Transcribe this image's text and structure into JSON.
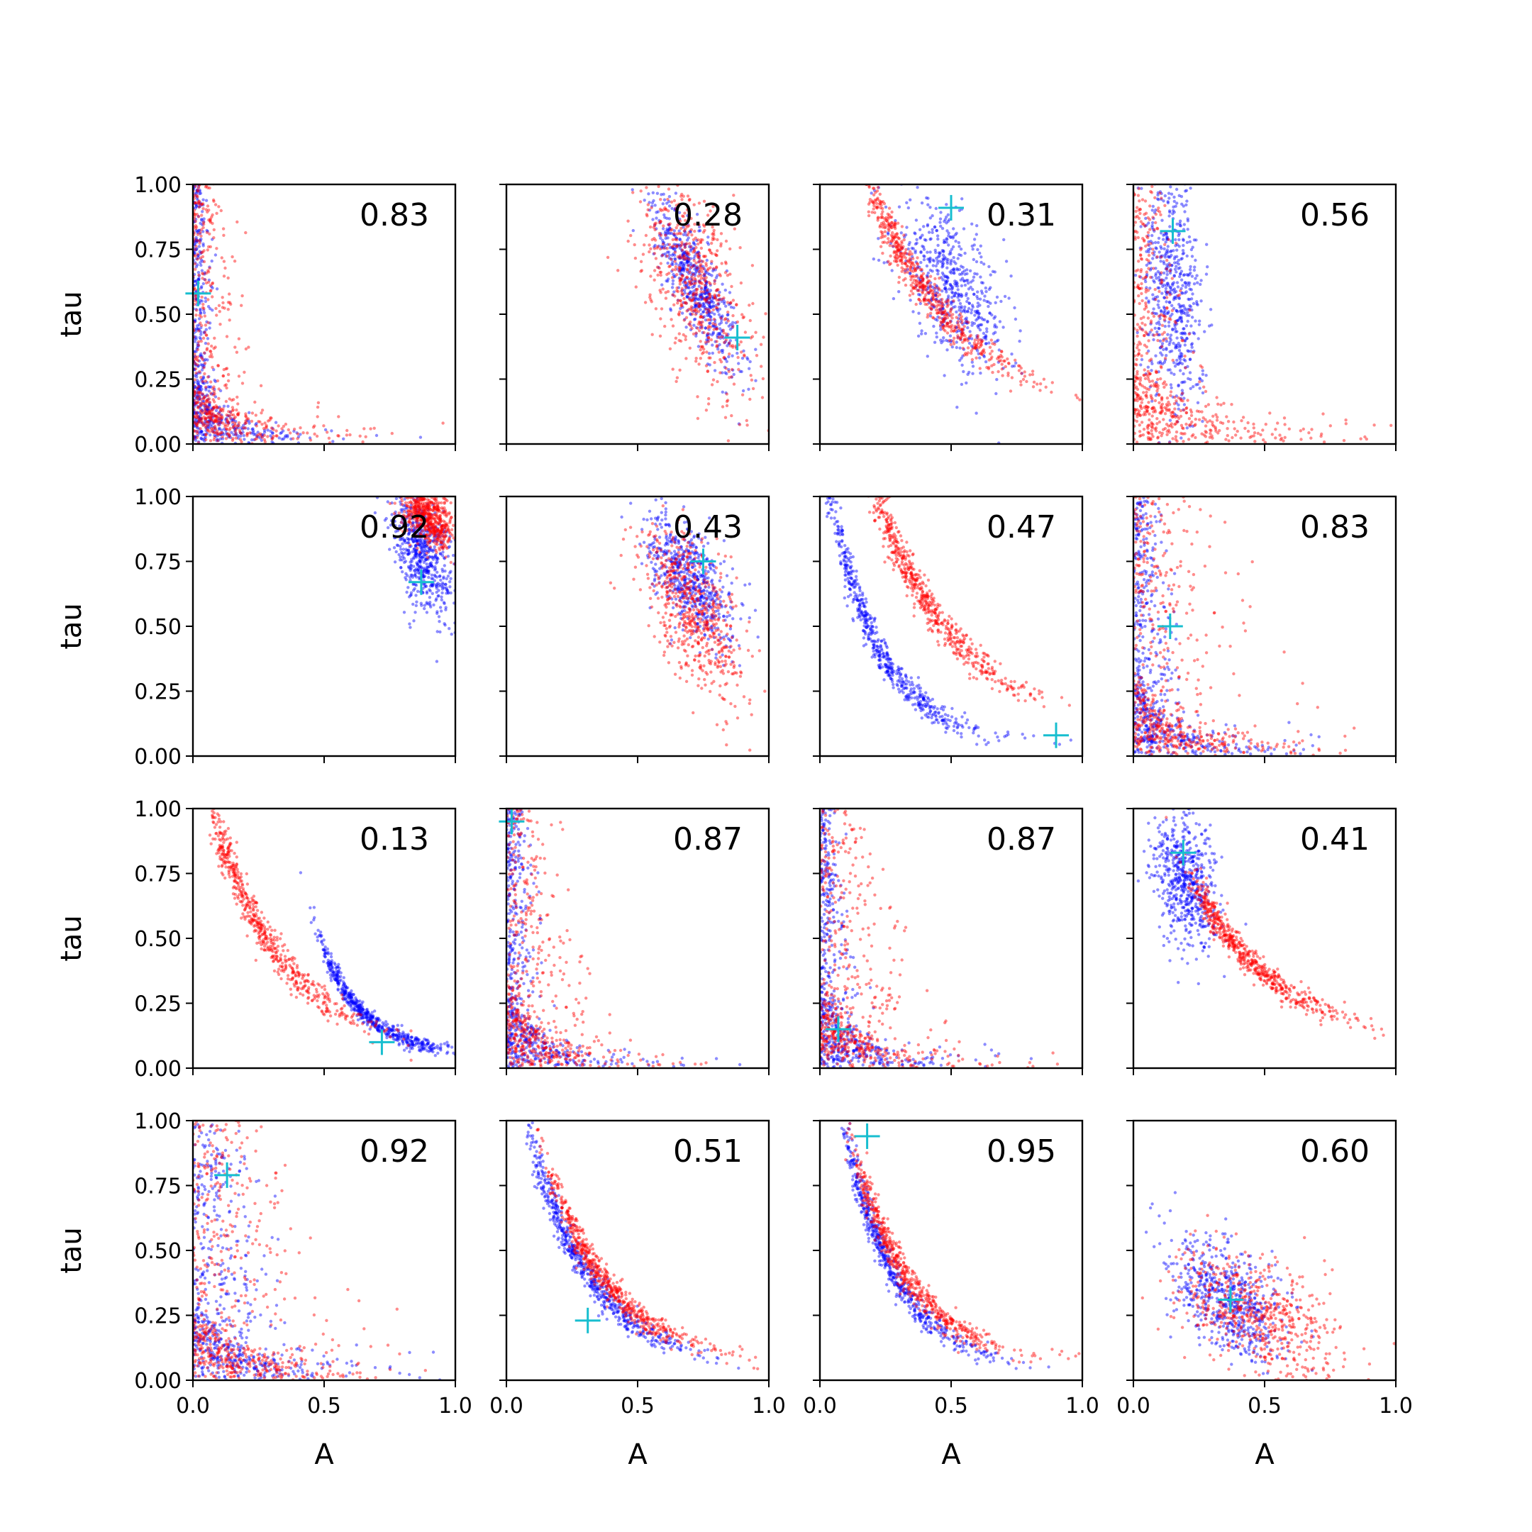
{
  "chart_data": {
    "type": "scatter",
    "xlabel": "A",
    "ylabel": "tau",
    "xlim": [
      0.0,
      1.0
    ],
    "ylim": [
      0.0,
      1.0
    ],
    "x_ticks": [
      "0.0",
      "0.5",
      "1.0"
    ],
    "y_ticks": [
      "0.00",
      "0.25",
      "0.50",
      "0.75",
      "1.00"
    ],
    "grid": false,
    "layout": {
      "rows": 4,
      "cols": 4
    },
    "series_colors": {
      "blue": "#0000ff",
      "red": "#ff0000",
      "marker": "#17becf"
    },
    "panels": [
      {
        "stat": "0.83",
        "marker": [
          0.02,
          0.58
        ],
        "blue": {
          "kind": "l",
          "s": 0.02,
          "amp": 0.8,
          "k": 8,
          "tight": 0.8
        },
        "red": {
          "kind": "l",
          "s": 0.05,
          "amp": 0.6,
          "k": 6,
          "tight": 1.3
        }
      },
      {
        "stat": "0.28",
        "marker": [
          0.88,
          0.41
        ],
        "blue": {
          "kind": "d",
          "cx": 0.72,
          "cy": 0.62,
          "sx": 0.08,
          "sy": 0.16,
          "rho": -0.8
        },
        "red": {
          "kind": "d",
          "cx": 0.72,
          "cy": 0.62,
          "sx": 0.11,
          "sy": 0.22,
          "rho": -0.6
        }
      },
      {
        "stat": "0.31",
        "marker": [
          0.5,
          0.91
        ],
        "blue": {
          "kind": "d",
          "cx": 0.5,
          "cy": 0.6,
          "sx": 0.11,
          "sy": 0.16,
          "rho": -0.6
        },
        "red": {
          "kind": "c",
          "s": 0.2,
          "amp": 0.9,
          "k": 2.5,
          "off": 0.05,
          "tight": 0.8
        }
      },
      {
        "stat": "0.56",
        "marker": [
          0.15,
          0.82
        ],
        "blue": {
          "kind": "d",
          "cx": 0.15,
          "cy": 0.58,
          "sx": 0.06,
          "sy": 0.24,
          "rho": -0.3
        },
        "red": {
          "kind": "l",
          "s": 0.05,
          "amp": 0.7,
          "k": 4,
          "tight": 1.2
        }
      },
      {
        "stat": "0.92",
        "marker": [
          0.87,
          0.67
        ],
        "blue": {
          "kind": "d",
          "cx": 0.87,
          "cy": 0.78,
          "sx": 0.06,
          "sy": 0.12,
          "rho": -0.5
        },
        "red": {
          "kind": "d",
          "cx": 0.9,
          "cy": 0.92,
          "sx": 0.05,
          "sy": 0.06,
          "rho": -0.4
        }
      },
      {
        "stat": "0.43",
        "marker": [
          0.75,
          0.75
        ],
        "blue": {
          "kind": "d",
          "cx": 0.7,
          "cy": 0.68,
          "sx": 0.08,
          "sy": 0.12,
          "rho": -0.6
        },
        "red": {
          "kind": "d",
          "cx": 0.72,
          "cy": 0.55,
          "sx": 0.1,
          "sy": 0.17,
          "rho": -0.6
        }
      },
      {
        "stat": "0.47",
        "marker": [
          0.9,
          0.08
        ],
        "blue": {
          "kind": "c",
          "s": 0.05,
          "amp": 0.9,
          "k": 5,
          "off": 0.04,
          "tight": 0.9
        },
        "red": {
          "kind": "c",
          "s": 0.22,
          "amp": 0.9,
          "k": 3,
          "off": 0.08,
          "tight": 0.8
        }
      },
      {
        "stat": "0.83",
        "marker": [
          0.14,
          0.5
        ],
        "blue": {
          "kind": "l",
          "s": 0.04,
          "amp": 0.8,
          "k": 6,
          "tight": 1.0
        },
        "red": {
          "kind": "l",
          "s": 0.1,
          "amp": 0.7,
          "k": 5,
          "tight": 1.0
        }
      },
      {
        "stat": "0.13",
        "marker": [
          0.72,
          0.1
        ],
        "blue": {
          "kind": "c",
          "s": 0.5,
          "amp": 0.4,
          "k": 6,
          "off": 0.05,
          "tight": 0.6
        },
        "red": {
          "kind": "c",
          "s": 0.08,
          "amp": 0.9,
          "k": 3.5,
          "off": 0.05,
          "tight": 0.9
        }
      },
      {
        "stat": "0.87",
        "marker": [
          0.02,
          0.95
        ],
        "blue": {
          "kind": "l",
          "s": 0.03,
          "amp": 0.9,
          "k": 7,
          "tight": 0.8
        },
        "red": {
          "kind": "l",
          "s": 0.07,
          "amp": 0.8,
          "k": 6,
          "tight": 1.0
        }
      },
      {
        "stat": "0.87",
        "marker": [
          0.07,
          0.15
        ],
        "blue": {
          "kind": "l",
          "s": 0.03,
          "amp": 0.9,
          "k": 7,
          "tight": 0.8
        },
        "red": {
          "kind": "l",
          "s": 0.08,
          "amp": 0.8,
          "k": 6,
          "tight": 1.0
        }
      },
      {
        "stat": "0.41",
        "marker": [
          0.19,
          0.83
        ],
        "blue": {
          "kind": "d",
          "cx": 0.2,
          "cy": 0.72,
          "sx": 0.06,
          "sy": 0.13,
          "rho": -0.3
        },
        "red": {
          "kind": "c",
          "s": 0.25,
          "amp": 0.6,
          "k": 3,
          "off": 0.08,
          "tight": 0.7
        }
      },
      {
        "stat": "0.92",
        "marker": [
          0.13,
          0.79
        ],
        "blue": {
          "kind": "l",
          "s": 0.08,
          "amp": 0.8,
          "k": 5,
          "tight": 1.0
        },
        "red": {
          "kind": "l",
          "s": 0.12,
          "amp": 0.7,
          "k": 5,
          "tight": 1.0
        }
      },
      {
        "stat": "0.51",
        "marker": [
          0.31,
          0.23
        ],
        "blue": {
          "kind": "c",
          "s": 0.12,
          "amp": 0.8,
          "k": 4,
          "off": 0.03,
          "tight": 0.8
        },
        "red": {
          "kind": "c",
          "s": 0.18,
          "amp": 0.7,
          "k": 4,
          "off": 0.06,
          "tight": 0.8
        }
      },
      {
        "stat": "0.95",
        "marker": [
          0.18,
          0.94
        ],
        "blue": {
          "kind": "c",
          "s": 0.1,
          "amp": 0.9,
          "k": 5,
          "off": 0.04,
          "tight": 0.8
        },
        "red": {
          "kind": "c",
          "s": 0.14,
          "amp": 0.8,
          "k": 4.5,
          "off": 0.06,
          "tight": 0.8
        }
      },
      {
        "stat": "0.60",
        "marker": [
          0.37,
          0.31
        ],
        "blue": {
          "kind": "d",
          "cx": 0.36,
          "cy": 0.31,
          "sx": 0.11,
          "sy": 0.12,
          "rho": -0.5
        },
        "red": {
          "kind": "d",
          "cx": 0.47,
          "cy": 0.25,
          "sx": 0.16,
          "sy": 0.13,
          "rho": -0.55
        }
      }
    ]
  }
}
